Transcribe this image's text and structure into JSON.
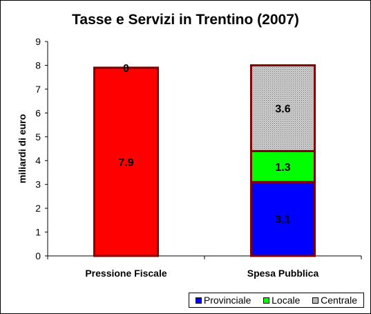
{
  "chart_data": {
    "type": "bar",
    "stacked": true,
    "title": "Tasse e Servizi in Trentino (2007)",
    "xlabel": "",
    "ylabel": "miliardi di euro",
    "ylim": [
      0,
      9
    ],
    "yticks": [
      0,
      1,
      2,
      3,
      4,
      5,
      6,
      7,
      8,
      9
    ],
    "categories": [
      "Pressione Fiscale",
      "Spesa Pubblica"
    ],
    "grid": false,
    "legend_position": "bottom-right",
    "series": [
      {
        "name": "Provinciale",
        "values": [
          7.9,
          3.1
        ],
        "labels": [
          "7.9",
          "3.1"
        ],
        "colors": [
          "#ff0000",
          "#0000ff"
        ]
      },
      {
        "name": "Locale",
        "values": [
          0,
          1.3
        ],
        "labels": [
          "0",
          "1.3"
        ],
        "colors": [
          "#ff0000",
          "#00ff00"
        ]
      },
      {
        "name": "Centrale",
        "values": [
          0,
          3.6
        ],
        "labels": [
          "",
          "3.6"
        ],
        "colors": [
          "#ff0000",
          "#d2d2d2"
        ]
      }
    ],
    "legend": [
      {
        "name": "Provinciale",
        "color": "#0000ff"
      },
      {
        "name": "Locale",
        "color": "#00ff00"
      },
      {
        "name": "Centrale",
        "color": "#d2d2d2",
        "pattern": "dotted"
      }
    ],
    "bar_outline_color": "#800000"
  }
}
